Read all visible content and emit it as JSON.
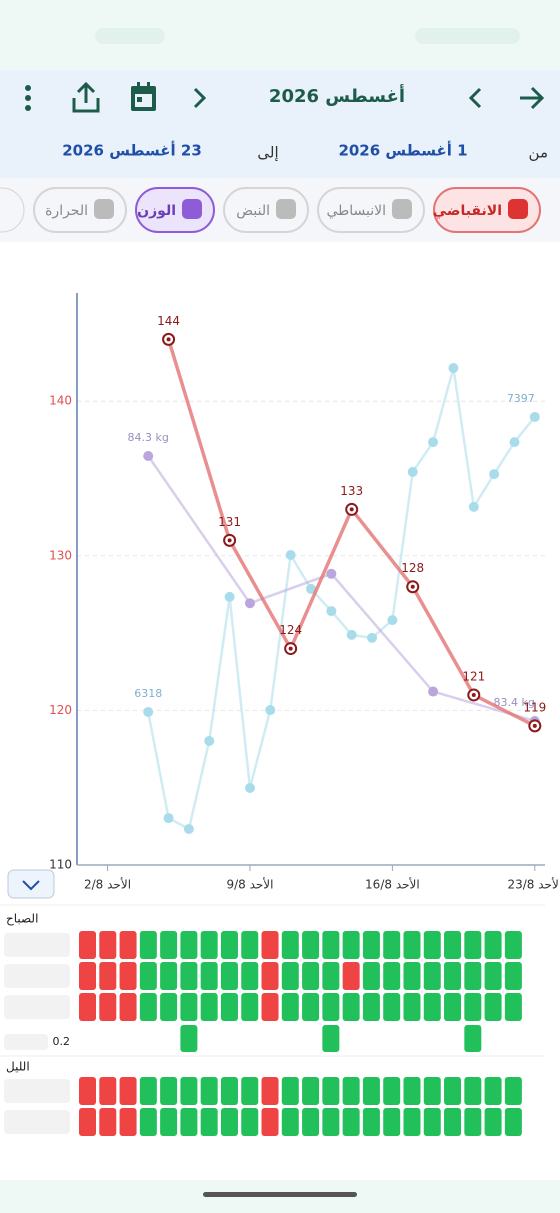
{
  "header": {
    "title": "أغسطس 2026",
    "from_label": "من",
    "from_date": "1 أغسطس 2026",
    "to_label": "إلى",
    "to_date": "23 أغسطس 2026"
  },
  "tabs": [
    {
      "label": "الانقباضي"
    },
    {
      "label": "الانبساطي"
    },
    {
      "label": "النبض"
    },
    {
      "label": "الوزن"
    },
    {
      "label": "الحرارة"
    }
  ],
  "chart_data": {
    "type": "line",
    "grid": true,
    "xlim": [
      0.5,
      23.5
    ],
    "xticks": [
      {
        "value": 2,
        "label": "الأحد 2/8"
      },
      {
        "value": 9,
        "label": "الأحد 9/8"
      },
      {
        "value": 16,
        "label": "الأحد 16/8"
      },
      {
        "value": 23,
        "label": "الأحد 23/8"
      }
    ],
    "ylim": [
      110,
      147
    ],
    "yticks": [
      110,
      120,
      130,
      140
    ],
    "series": [
      {
        "color": "#a9dcea",
        "scale": "own",
        "label_ends": true,
        "x": [
          4,
          5,
          6,
          7,
          8,
          9,
          10,
          11,
          12,
          13,
          14,
          15,
          16,
          17,
          18,
          19,
          20,
          21,
          22,
          23
        ],
        "values": [
          6318,
          5930,
          5890,
          6212,
          6739,
          6040,
          6325,
          6892,
          6768,
          6687,
          6600,
          6589,
          6654,
          7196,
          7305,
          7576,
          7068,
          7188,
          7305,
          7397
        ]
      },
      {
        "color": "#b9a6dd",
        "scale": "own",
        "x": [
          4,
          9,
          13,
          18,
          23
        ],
        "values": [
          84.3,
          83.8,
          83.9,
          83.5,
          83.4
        ],
        "value_labels": [
          "84.3 kg",
          null,
          null,
          null,
          "83.4 kg"
        ]
      },
      {
        "color": "#e57373",
        "scale": "y",
        "x": [
          5,
          8,
          11,
          14,
          17,
          20,
          23
        ],
        "values": [
          144,
          131,
          124,
          133,
          128,
          121,
          119
        ]
      }
    ]
  },
  "grid": {
    "morning_label": "الصباح",
    "night_label": "الليل",
    "morning": [
      [
        1,
        1,
        1,
        0,
        0,
        0,
        0,
        0,
        0,
        1,
        0,
        0,
        0,
        0,
        0,
        0,
        0,
        0,
        0,
        0,
        0,
        0
      ],
      [
        1,
        1,
        1,
        0,
        0,
        0,
        0,
        0,
        0,
        1,
        0,
        0,
        0,
        1,
        0,
        0,
        0,
        0,
        0,
        0,
        0,
        0
      ],
      [
        1,
        1,
        1,
        0,
        0,
        0,
        0,
        0,
        0,
        1,
        0,
        0,
        0,
        0,
        0,
        0,
        0,
        0,
        0,
        0,
        0,
        0
      ]
    ],
    "extra_row": {
      "label": "0.2",
      "columns": [
        5,
        12,
        19
      ]
    },
    "night": [
      [
        1,
        1,
        1,
        0,
        0,
        0,
        0,
        0,
        0,
        1,
        0,
        0,
        0,
        0,
        0,
        0,
        0,
        0,
        0,
        0,
        0,
        0
      ],
      [
        1,
        1,
        1,
        0,
        0,
        0,
        0,
        0,
        0,
        1,
        0,
        0,
        0,
        0,
        0,
        0,
        0,
        0,
        0,
        0,
        0,
        0
      ]
    ]
  }
}
